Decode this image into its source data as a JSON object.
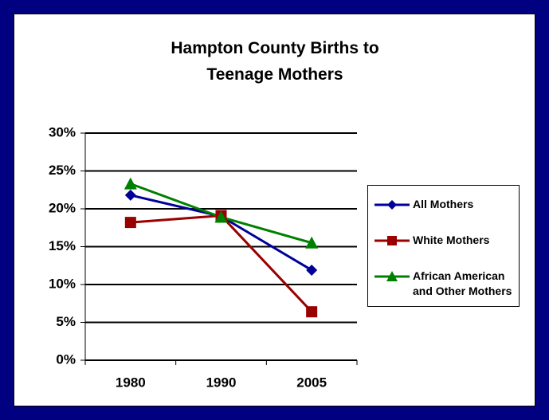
{
  "chart_data": {
    "type": "line",
    "title": "Hampton County Births to Teenage Mothers",
    "categories": [
      "1980",
      "1990",
      "2005"
    ],
    "series": [
      {
        "name": "All Mothers",
        "color": "#000099",
        "marker": "diamond",
        "values": [
          21.8,
          19.0,
          11.9
        ]
      },
      {
        "name": "White Mothers",
        "color": "#990000",
        "marker": "square",
        "values": [
          18.2,
          19.1,
          6.4
        ]
      },
      {
        "name": "African American and Other Mothers",
        "color": "#008000",
        "marker": "triangle",
        "values": [
          23.3,
          18.9,
          15.5
        ]
      }
    ],
    "ylim": [
      0,
      30
    ],
    "yticks": [
      {
        "value": 0,
        "label": "0%"
      },
      {
        "value": 5,
        "label": "5%"
      },
      {
        "value": 10,
        "label": "10%"
      },
      {
        "value": 15,
        "label": "15%"
      },
      {
        "value": 20,
        "label": "20%"
      },
      {
        "value": 25,
        "label": "25%"
      },
      {
        "value": 30,
        "label": "30%"
      }
    ],
    "grid": true,
    "legend": "right"
  }
}
